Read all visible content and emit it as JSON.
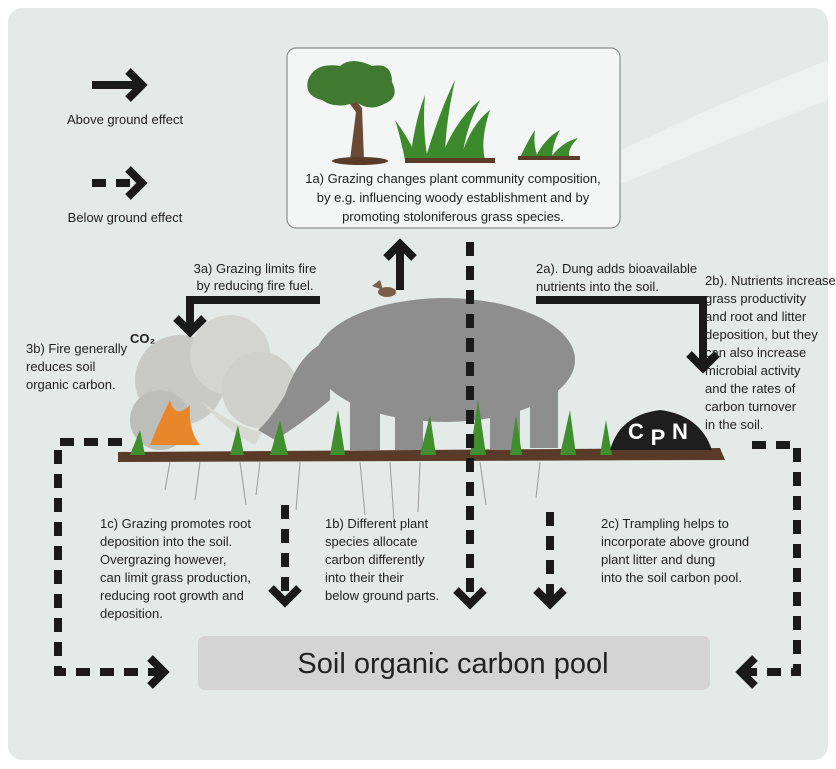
{
  "legend": {
    "above": "Above ground effect",
    "below": "Below ground effect"
  },
  "box_1a": {
    "lines": [
      "1a) Grazing changes plant community composition,",
      "by e.g. influencing woody establishment and by",
      "promoting stoloniferous grass species."
    ]
  },
  "annotation_3a": {
    "lines": [
      "3a) Grazing limits fire",
      "by reducing fire fuel."
    ]
  },
  "co2": "CO₂",
  "annotation_3b": {
    "lines": [
      "3b) Fire generally",
      "reduces soil",
      "organic carbon."
    ]
  },
  "annotation_2a": {
    "lines": [
      "2a). Dung adds bioavailable",
      "nutrients into the soil."
    ]
  },
  "annotation_2b": {
    "lines": [
      "2b). Nutrients increase",
      "grass productivity",
      "and root and litter",
      "deposition, but they",
      "can also increase",
      "microbial activity",
      "and the rates of",
      "carbon turnover",
      " in the soil."
    ]
  },
  "dung_letters": [
    "C",
    "P",
    "N"
  ],
  "annotation_1c": {
    "lines": [
      "1c) Grazing promotes root",
      "deposition into the soil.",
      "Overgrazing however,",
      "can limit grass production,",
      "reducing root growth and",
      "deposition."
    ]
  },
  "annotation_1b": {
    "lines": [
      "1b) Different plant",
      "species allocate",
      "carbon differently",
      "into their their",
      " below ground parts."
    ]
  },
  "annotation_2c": {
    "lines": [
      "2c) Trampling helps to",
      "incorporate above ground",
      "plant litter and dung",
      "into the soil carbon pool."
    ]
  },
  "pool_label": "Soil organic carbon pool"
}
